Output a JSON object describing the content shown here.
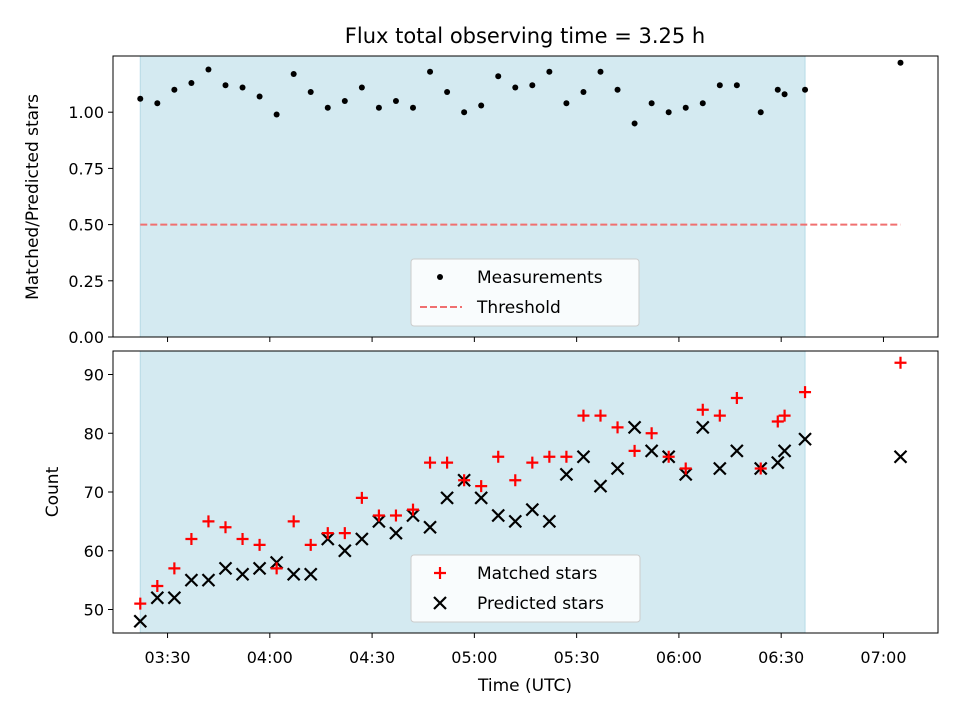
{
  "chart_data": [
    {
      "type": "scatter",
      "title": "Flux total observing time = 3.25 h",
      "xlabel": "",
      "ylabel": "Matched/Predicted stars",
      "xlim": [
        "03:14",
        "07:16"
      ],
      "ylim": [
        0,
        1.25
      ],
      "yticks": [
        "0.00",
        "0.25",
        "0.50",
        "0.75",
        "1.00"
      ],
      "shaded_span": {
        "from": "03:22",
        "to": "06:37",
        "color": "#d4eaf1"
      },
      "threshold": {
        "label": "Threshold",
        "y": 0.5,
        "from": "03:22",
        "to": "07:05",
        "color": "#f07070"
      },
      "legend": {
        "placement": "lower-center",
        "entries": [
          "Measurements",
          "Threshold"
        ]
      },
      "series": [
        {
          "name": "Measurements",
          "color": "#000000",
          "x": [
            "03:22",
            "03:27",
            "03:32",
            "03:37",
            "03:42",
            "03:47",
            "03:52",
            "03:57",
            "04:02",
            "04:07",
            "04:12",
            "04:17",
            "04:22",
            "04:27",
            "04:32",
            "04:37",
            "04:42",
            "04:47",
            "04:52",
            "04:57",
            "05:02",
            "05:07",
            "05:12",
            "05:17",
            "05:22",
            "05:27",
            "05:32",
            "05:37",
            "05:42",
            "05:47",
            "05:52",
            "05:57",
            "06:02",
            "06:07",
            "06:12",
            "06:17",
            "06:24",
            "06:29",
            "06:31",
            "06:37",
            "07:05"
          ],
          "y": [
            1.06,
            1.04,
            1.1,
            1.13,
            1.19,
            1.12,
            1.11,
            1.07,
            0.99,
            1.17,
            1.09,
            1.02,
            1.05,
            1.11,
            1.02,
            1.05,
            1.02,
            1.18,
            1.09,
            1.0,
            1.03,
            1.16,
            1.11,
            1.12,
            1.18,
            1.04,
            1.09,
            1.18,
            1.1,
            0.95,
            1.04,
            1.0,
            1.02,
            1.04,
            1.12,
            1.12,
            1.0,
            1.1,
            1.08,
            1.1,
            1.22
          ]
        }
      ]
    },
    {
      "type": "scatter",
      "title": "",
      "xlabel": "Time (UTC)",
      "ylabel": "Count",
      "xlim": [
        "03:14",
        "07:16"
      ],
      "ylim": [
        46,
        94
      ],
      "yticks": [
        "50",
        "60",
        "70",
        "80",
        "90"
      ],
      "xticks": [
        "03:30",
        "04:00",
        "04:30",
        "05:00",
        "05:30",
        "06:00",
        "06:30",
        "07:00"
      ],
      "shaded_span": {
        "from": "03:22",
        "to": "06:37",
        "color": "#d4eaf1"
      },
      "legend": {
        "placement": "lower-center",
        "entries": [
          "Matched stars",
          "Predicted stars"
        ]
      },
      "x": [
        "03:22",
        "03:27",
        "03:32",
        "03:37",
        "03:42",
        "03:47",
        "03:52",
        "03:57",
        "04:02",
        "04:07",
        "04:12",
        "04:17",
        "04:22",
        "04:27",
        "04:32",
        "04:37",
        "04:42",
        "04:47",
        "04:52",
        "04:57",
        "05:02",
        "05:07",
        "05:12",
        "05:17",
        "05:22",
        "05:27",
        "05:32",
        "05:37",
        "05:42",
        "05:47",
        "05:52",
        "05:57",
        "06:02",
        "06:07",
        "06:12",
        "06:17",
        "06:24",
        "06:29",
        "06:31",
        "06:37",
        "07:05"
      ],
      "series": [
        {
          "name": "Matched stars",
          "marker": "+",
          "color": "#ff0000",
          "values": [
            51,
            54,
            57,
            62,
            65,
            64,
            62,
            61,
            57,
            65,
            61,
            63,
            63,
            69,
            66,
            66,
            67,
            75,
            75,
            72,
            71,
            76,
            72,
            75,
            76,
            76,
            83,
            83,
            81,
            77,
            80,
            76,
            74,
            84,
            83,
            86,
            74,
            82,
            83,
            87,
            92
          ]
        },
        {
          "name": "Predicted stars",
          "marker": "x",
          "color": "#000000",
          "values": [
            48,
            52,
            52,
            55,
            55,
            57,
            56,
            57,
            58,
            56,
            56,
            62,
            60,
            62,
            65,
            63,
            66,
            64,
            69,
            72,
            69,
            66,
            65,
            67,
            65,
            73,
            76,
            71,
            74,
            81,
            77,
            76,
            73,
            81,
            74,
            77,
            74,
            75,
            77,
            79,
            76
          ]
        }
      ]
    }
  ]
}
